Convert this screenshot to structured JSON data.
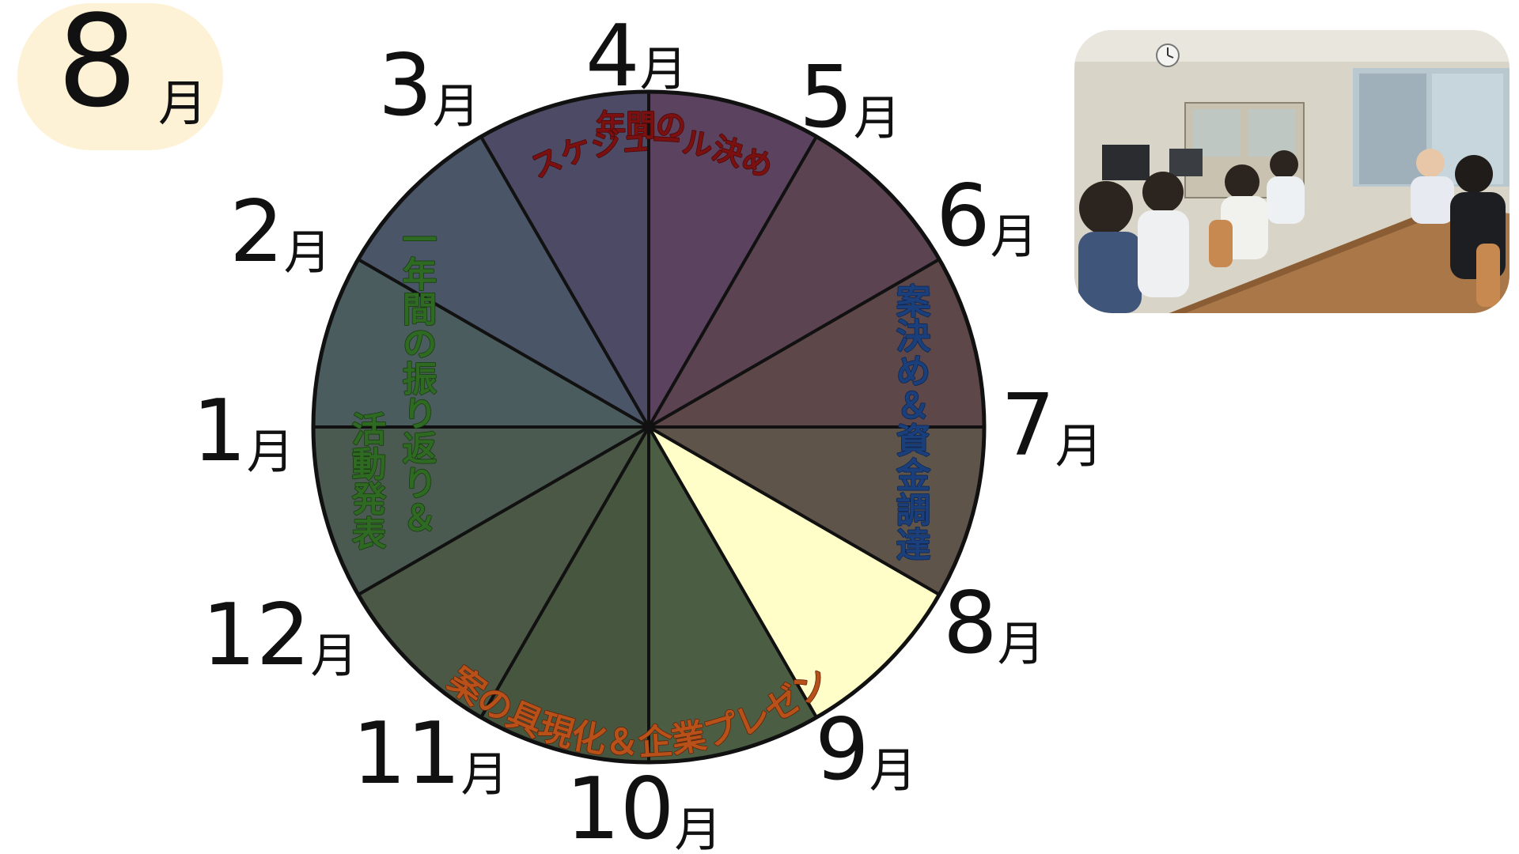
{
  "current_month": {
    "number": "8",
    "unit": "月"
  },
  "months": [
    {
      "number": "4",
      "unit": "月"
    },
    {
      "number": "5",
      "unit": "月"
    },
    {
      "number": "6",
      "unit": "月"
    },
    {
      "number": "7",
      "unit": "月"
    },
    {
      "number": "8",
      "unit": "月"
    },
    {
      "number": "9",
      "unit": "月"
    },
    {
      "number": "10",
      "unit": "月"
    },
    {
      "number": "11",
      "unit": "月"
    },
    {
      "number": "12",
      "unit": "月"
    },
    {
      "number": "1",
      "unit": "月"
    },
    {
      "number": "2",
      "unit": "月"
    },
    {
      "number": "3",
      "unit": "月"
    }
  ],
  "activities": {
    "schedule_line1": "年間の",
    "schedule_line2": "スケジュール決め",
    "plan": "案決め＆資金調達",
    "presentation": "案の具現化＆企業プレゼン",
    "review_line1": "一年間の振り返り＆",
    "review_line2": "活動発表"
  },
  "colors": {
    "highlight": "#fffec8",
    "outline": "#111111",
    "badge": "#fdf2d6",
    "schedule_text": "#7a1010",
    "plan_text": "#1a3f7a",
    "presentation_text": "#b8501a",
    "review_text": "#2f6a22"
  },
  "photo": {
    "icon": "classroom-meeting-photo"
  }
}
